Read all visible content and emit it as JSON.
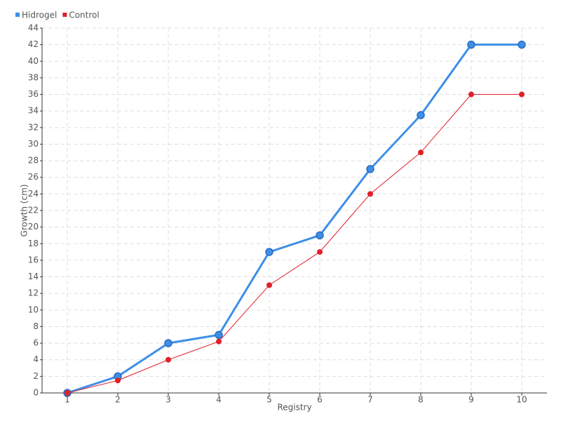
{
  "chart_data": {
    "type": "line",
    "x_label": "Registry",
    "y_label": "Growth (cm)",
    "categories": [
      "1",
      "2",
      "3",
      "4",
      "5",
      "6",
      "7",
      "8",
      "9",
      "10"
    ],
    "series": [
      {
        "name": "Hidrogel",
        "color": "#3d8fe8",
        "values": [
          0,
          2,
          6,
          7,
          17,
          19,
          27,
          33.5,
          42,
          42
        ]
      },
      {
        "name": "Control",
        "color": "#e0202a",
        "values": [
          0,
          1.5,
          4,
          6.2,
          13,
          17,
          24,
          29,
          36,
          36
        ]
      }
    ],
    "ylim": [
      0,
      44
    ],
    "yticks": [
      0,
      2,
      4,
      6,
      8,
      10,
      12,
      14,
      16,
      18,
      20,
      22,
      24,
      26,
      28,
      30,
      32,
      34,
      36,
      38,
      40,
      42,
      44
    ],
    "grid": true,
    "legend": "top-left"
  }
}
